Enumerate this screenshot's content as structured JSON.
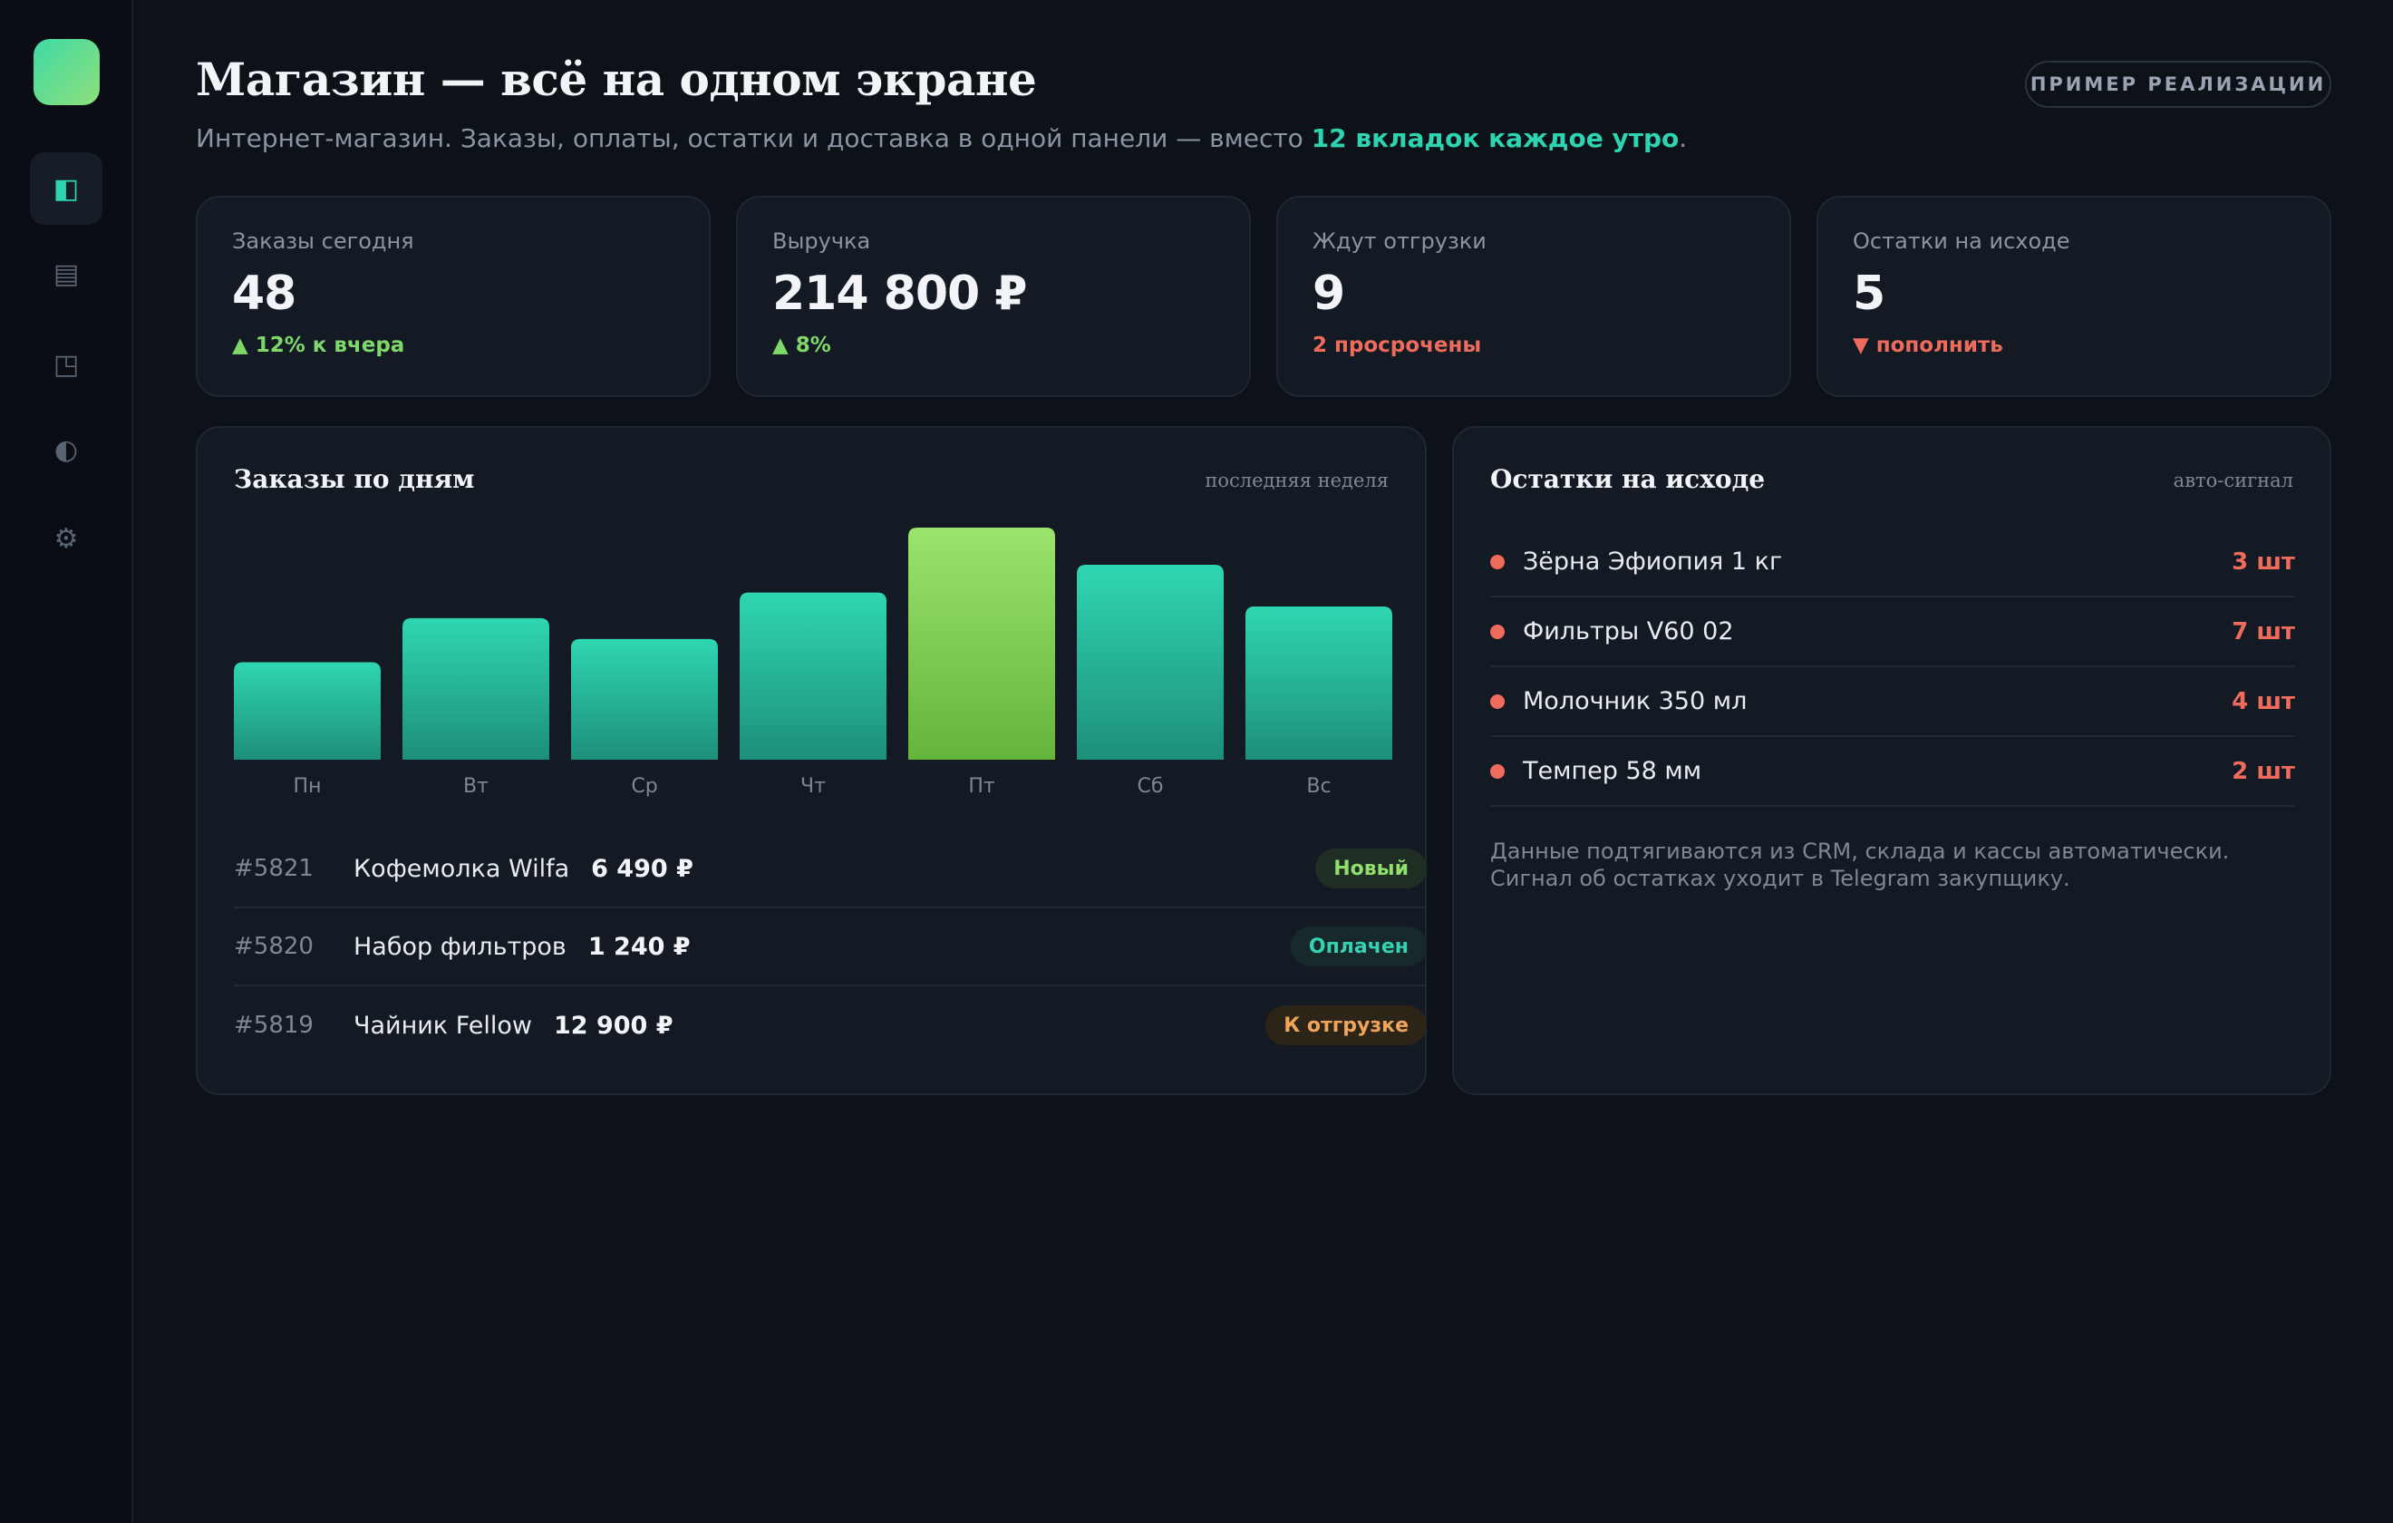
{
  "app": {
    "title": "Магазин — всё на одном экране",
    "subtitle_pre": "Интернет-магазин. Заказы, оплаты, остатки и доставка в одной панели — вместо ",
    "subtitle_highlight": "12 вкладок каждое утро",
    "subtitle_post": ".",
    "badge": "ПРИМЕР РЕАЛИЗАЦИИ"
  },
  "sidebar": {
    "items": [
      {
        "icon": "dashboard-icon",
        "glyph": "◧",
        "active": true
      },
      {
        "icon": "orders-icon",
        "glyph": "▤",
        "active": false
      },
      {
        "icon": "layout-icon",
        "glyph": "◳",
        "active": false
      },
      {
        "icon": "contrast-icon",
        "glyph": "◐",
        "active": false
      },
      {
        "icon": "gear-icon",
        "glyph": "⚙",
        "active": false
      }
    ]
  },
  "kpis": [
    {
      "label": "Заказы сегодня",
      "value": "48",
      "trend": "▲ 12% к вчера",
      "trend_dir": "up"
    },
    {
      "label": "Выручка",
      "value": "214 800 ₽",
      "trend": "▲ 8%",
      "trend_dir": "up"
    },
    {
      "label": "Ждут отгрузки",
      "value": "9",
      "trend": "2 просрочены",
      "trend_dir": "down"
    },
    {
      "label": "Остатки на исходе",
      "value": "5",
      "trend": "▼ пополнить",
      "trend_dir": "down"
    }
  ],
  "orders_panel": {
    "title": "Заказы по дням",
    "note": "последняя неделя",
    "orders": [
      {
        "id": "#5821",
        "name": "Кофемолка Wilfa",
        "sum": "6 490 ₽",
        "status": "Новый",
        "status_type": "new"
      },
      {
        "id": "#5820",
        "name": "Набор фильтров",
        "sum": "1 240 ₽",
        "status": "Оплачен",
        "status_type": "paid"
      },
      {
        "id": "#5819",
        "name": "Чайник Fellow",
        "sum": "12 900 ₽",
        "status": "К отгрузке",
        "status_type": "ship"
      }
    ]
  },
  "stock_panel": {
    "title": "Остатки на исходе",
    "note": "авто-сигнал",
    "items": [
      {
        "name": "Зёрна Эфиопия 1 кг",
        "qty": "3 шт"
      },
      {
        "name": "Фильтры V60 02",
        "qty": "7 шт"
      },
      {
        "name": "Молочник 350 мл",
        "qty": "4 шт"
      },
      {
        "name": "Темпер 58 мм",
        "qty": "2 шт"
      }
    ],
    "footnote": "Данные подтягиваются из CRM, склада и кассы автоматически. Сигнал об остатках уходит в Telegram закупщику."
  },
  "colors": {
    "accent": "#2ed3b0",
    "bar": "#2bcfab",
    "bar_highlight": "#8fe06f",
    "danger": "#ef6b5c"
  },
  "chart_data": {
    "type": "bar",
    "categories": [
      "Пн",
      "Вт",
      "Ср",
      "Чт",
      "Пт",
      "Сб",
      "Вс"
    ],
    "values": [
      42,
      61,
      52,
      72,
      100,
      84,
      66
    ],
    "highlight_index": 4,
    "title": "Заказы по дням",
    "xlabel": "",
    "ylabel": "",
    "ylim": [
      0,
      100
    ],
    "grid": false
  }
}
